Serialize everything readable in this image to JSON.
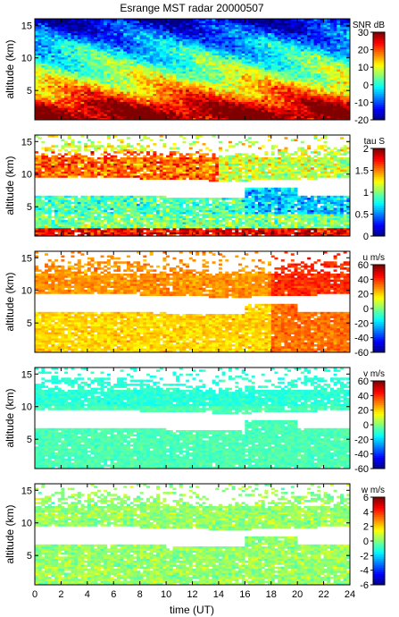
{
  "title": "Esrange MST radar 20000507",
  "chart_data": [
    {
      "type": "heatmap",
      "quantity": "SNR",
      "colorbar_label": "SNR dB",
      "colorbar_range": [
        -20,
        30
      ],
      "colorbar_ticks": [
        30,
        20,
        10,
        0,
        -10,
        -20
      ],
      "ylabel": "altitude (km)",
      "ylim": [
        0.5,
        16
      ],
      "yticks": [
        5,
        10,
        15
      ],
      "xlim": [
        0,
        24
      ],
      "description": "High SNR (20-30 dB) below ~4 km, decreasing to ~0-10 dB at 6-11 km and below 0 dB above 12 km"
    },
    {
      "type": "heatmap",
      "quantity": "tau",
      "colorbar_label": "tau S",
      "colorbar_range": [
        0,
        2
      ],
      "colorbar_ticks": [
        2,
        1.5,
        1,
        0.5,
        0
      ],
      "ylabel": "altitude (km)",
      "ylim": [
        0.5,
        16
      ],
      "yticks": [
        5,
        10,
        15
      ],
      "xlim": [
        0,
        24
      ],
      "description": "Large correlation time (~1.5-2 s) near 10-13 km and near ground; ~0.7-1.2 s elsewhere; data gap near 7-9 km"
    },
    {
      "type": "heatmap",
      "quantity": "u",
      "colorbar_label": "u m/s",
      "colorbar_range": [
        -60,
        60
      ],
      "colorbar_ticks": [
        60,
        40,
        20,
        0,
        -20,
        -40,
        -60
      ],
      "ylabel": "altitude (km)",
      "ylim": [
        0.5,
        16
      ],
      "yticks": [
        5,
        10,
        15
      ],
      "xlim": [
        0,
        24
      ],
      "description": "Eastward wind ~20-30 m/s between 4-11 km, increasing to ~40 m/s after 18 UT"
    },
    {
      "type": "heatmap",
      "quantity": "v",
      "colorbar_label": "v m/s",
      "colorbar_range": [
        -60,
        60
      ],
      "colorbar_ticks": [
        60,
        40,
        20,
        0,
        -20,
        -40,
        -60
      ],
      "ylabel": "altitude (km)",
      "ylim": [
        0.5,
        16
      ],
      "yticks": [
        5,
        10,
        15
      ],
      "xlim": [
        0,
        24
      ],
      "description": "Meridional wind near 0 m/s (slightly negative) at all altitudes"
    },
    {
      "type": "heatmap",
      "quantity": "w",
      "colorbar_label": "w m/s",
      "colorbar_range": [
        -6,
        6
      ],
      "colorbar_ticks": [
        6,
        4,
        2,
        0,
        -2,
        -4,
        -6
      ],
      "ylabel": "altitude (km)",
      "ylim": [
        0.5,
        16
      ],
      "yticks": [
        5,
        10,
        15
      ],
      "xlim": [
        0,
        24
      ],
      "xticks": [
        0,
        2,
        4,
        6,
        8,
        10,
        12,
        14,
        16,
        18,
        20,
        22,
        24
      ],
      "xlabel": "time (UT)",
      "description": "Vertical wind near 0 m/s everywhere"
    }
  ]
}
